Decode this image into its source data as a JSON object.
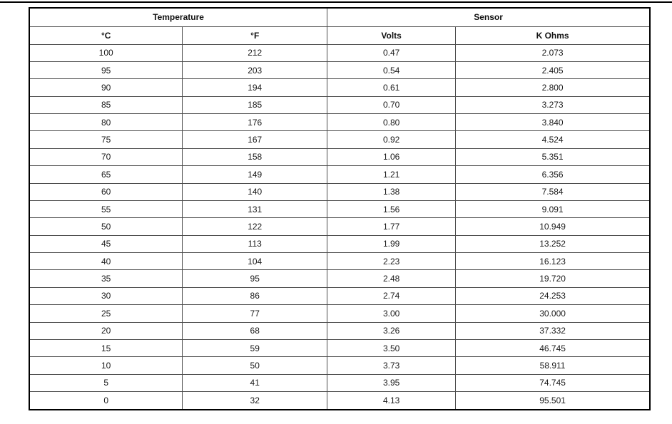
{
  "page": {
    "background": "#ffffff",
    "top_rule_color": "#000000",
    "table_border_color": "#000000",
    "grid_line_color": "#4d4d4d"
  },
  "table": {
    "title_groups": [
      {
        "label": "Temperature"
      },
      {
        "label": "Sensor"
      }
    ],
    "columns": [
      {
        "label": "°C"
      },
      {
        "label": "°F"
      },
      {
        "label": "Volts"
      },
      {
        "label": "K Ohms"
      }
    ],
    "rows": [
      [
        "100",
        "212",
        "0.47",
        "2.073"
      ],
      [
        "95",
        "203",
        "0.54",
        "2.405"
      ],
      [
        "90",
        "194",
        "0.61",
        "2.800"
      ],
      [
        "85",
        "185",
        "0.70",
        "3.273"
      ],
      [
        "80",
        "176",
        "0.80",
        "3.840"
      ],
      [
        "75",
        "167",
        "0.92",
        "4.524"
      ],
      [
        "70",
        "158",
        "1.06",
        "5.351"
      ],
      [
        "65",
        "149",
        "1.21",
        "6.356"
      ],
      [
        "60",
        "140",
        "1.38",
        "7.584"
      ],
      [
        "55",
        "131",
        "1.56",
        "9.091"
      ],
      [
        "50",
        "122",
        "1.77",
        "10.949"
      ],
      [
        "45",
        "113",
        "1.99",
        "13.252"
      ],
      [
        "40",
        "104",
        "2.23",
        "16.123"
      ],
      [
        "35",
        "95",
        "2.48",
        "19.720"
      ],
      [
        "30",
        "86",
        "2.74",
        "24.253"
      ],
      [
        "25",
        "77",
        "3.00",
        "30.000"
      ],
      [
        "20",
        "68",
        "3.26",
        "37.332"
      ],
      [
        "15",
        "59",
        "3.50",
        "46.745"
      ],
      [
        "10",
        "50",
        "3.73",
        "58.911"
      ],
      [
        "5",
        "41",
        "3.95",
        "74.745"
      ],
      [
        "0",
        "32",
        "4.13",
        "95.501"
      ]
    ]
  },
  "chart_data": {
    "type": "table",
    "title": "Temperature / Sensor conversion table",
    "column_groups": [
      "Temperature",
      "Temperature",
      "Sensor",
      "Sensor"
    ],
    "columns": [
      "°C",
      "°F",
      "Volts",
      "K Ohms"
    ],
    "celsius": [
      100,
      95,
      90,
      85,
      80,
      75,
      70,
      65,
      60,
      55,
      50,
      45,
      40,
      35,
      30,
      25,
      20,
      15,
      10,
      5,
      0
    ],
    "fahrenheit": [
      212,
      203,
      194,
      185,
      176,
      167,
      158,
      149,
      140,
      131,
      122,
      113,
      104,
      95,
      86,
      77,
      68,
      59,
      50,
      41,
      32
    ],
    "volts": [
      0.47,
      0.54,
      0.61,
      0.7,
      0.8,
      0.92,
      1.06,
      1.21,
      1.38,
      1.56,
      1.77,
      1.99,
      2.23,
      2.48,
      2.74,
      3.0,
      3.26,
      3.5,
      3.73,
      3.95,
      4.13
    ],
    "k_ohms": [
      2.073,
      2.405,
      2.8,
      3.273,
      3.84,
      4.524,
      5.351,
      6.356,
      7.584,
      9.091,
      10.949,
      13.252,
      16.123,
      19.72,
      24.253,
      30.0,
      37.332,
      46.745,
      58.911,
      74.745,
      95.501
    ]
  }
}
